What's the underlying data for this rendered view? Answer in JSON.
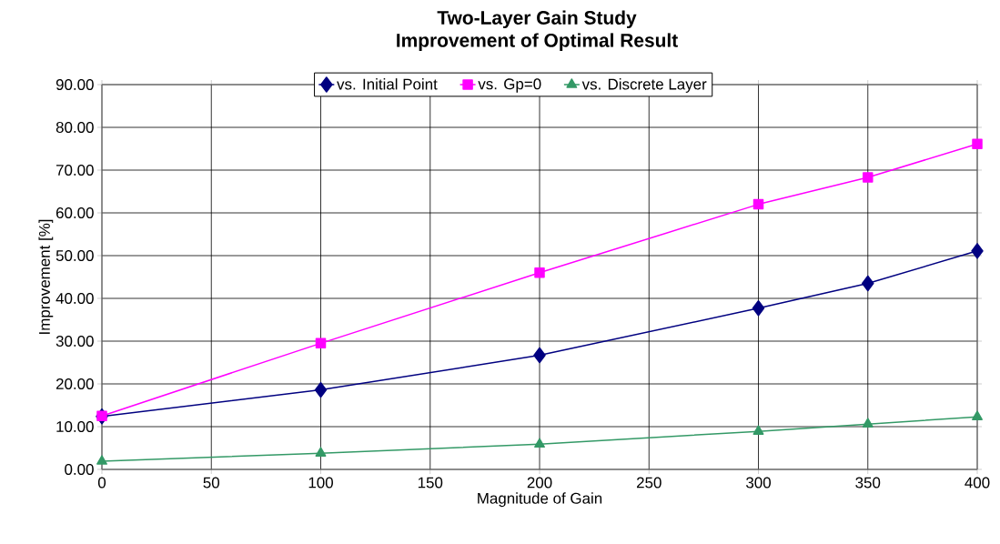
{
  "chart_data": {
    "type": "line",
    "title": "Two-Layer Gain Study",
    "subtitle": "Improvement  of Optimal Result",
    "xlabel": "Magnitude of Gain",
    "ylabel": "Improvement [%]",
    "x": [
      0,
      100,
      200,
      300,
      350,
      400
    ],
    "series": [
      {
        "name": "vs. Initial Point",
        "color": "#000080",
        "marker": "diamond",
        "values": [
          12.4,
          18.6,
          26.7,
          37.7,
          43.5,
          51.1
        ]
      },
      {
        "name": "vs. Gp=0",
        "color": "#ff00ff",
        "marker": "square",
        "values": [
          12.5,
          29.5,
          46.0,
          62.0,
          68.3,
          76.1
        ]
      },
      {
        "name": "vs. Discrete Layer",
        "color": "#339966",
        "marker": "triangle",
        "values": [
          1.9,
          3.8,
          5.9,
          8.9,
          10.6,
          12.3
        ]
      }
    ],
    "xlim": [
      0,
      400
    ],
    "xticks": [
      0,
      50,
      100,
      150,
      200,
      250,
      300,
      350,
      400
    ],
    "ylim": [
      0,
      90
    ],
    "yticks": [
      {
        "value": 0,
        "label": "0.00"
      },
      {
        "value": 10,
        "label": "10.00"
      },
      {
        "value": 20,
        "label": "20.00"
      },
      {
        "value": 30,
        "label": "30.00"
      },
      {
        "value": 40,
        "label": "40.00"
      },
      {
        "value": 50,
        "label": "50.00"
      },
      {
        "value": 60,
        "label": "60.00"
      },
      {
        "value": 70,
        "label": "70.00"
      },
      {
        "value": 80,
        "label": "80.00"
      },
      {
        "value": 90,
        "label": "90.00"
      }
    ],
    "grid": true,
    "legend": "top"
  }
}
